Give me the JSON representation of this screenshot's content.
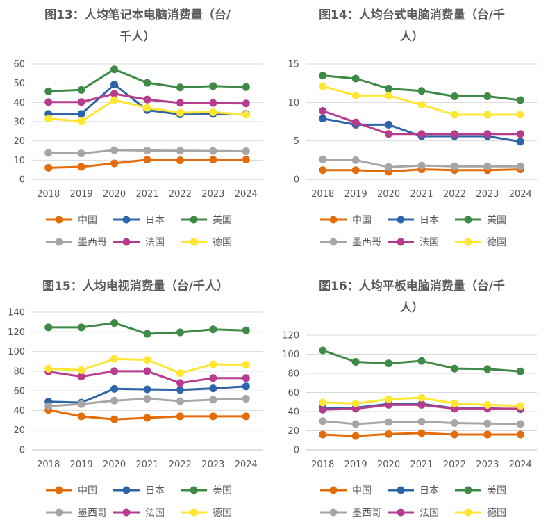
{
  "chart_data": [
    {
      "type": "line",
      "title": "图13：人均笔记本电脑消费量（台/千人）",
      "title_lines": [
        "图13：人均笔记本电脑消费量（台/",
        "千人）"
      ],
      "categories": [
        "2018",
        "2019",
        "2020",
        "2021",
        "2022",
        "2023",
        "2024"
      ],
      "ylim": [
        0,
        60
      ],
      "yticks": [
        0,
        10,
        20,
        30,
        40,
        50,
        60
      ],
      "grid": true,
      "legend_position": "bottom",
      "series": [
        {
          "name": "中国",
          "color": "#E46C0A",
          "values": [
            6,
            6.5,
            8.3,
            10.2,
            9.9,
            10.2,
            10.3
          ]
        },
        {
          "name": "日本",
          "color": "#2E64A8",
          "values": [
            34,
            34,
            49.3,
            36,
            33.8,
            34,
            34
          ]
        },
        {
          "name": "美国",
          "color": "#3F8A46",
          "values": [
            45.8,
            46.5,
            57.2,
            50.2,
            47.8,
            48.5,
            48
          ]
        },
        {
          "name": "墨西哥",
          "color": "#A6A6A6",
          "values": [
            13.8,
            13.5,
            15.2,
            15,
            14.9,
            14.8,
            14.6
          ]
        },
        {
          "name": "法国",
          "color": "#B73C8E",
          "values": [
            40.2,
            40.2,
            44.5,
            41.5,
            39.8,
            39.7,
            39.5
          ]
        },
        {
          "name": "德国",
          "color": "#FFE633",
          "values": [
            31.5,
            30.2,
            41.2,
            37.2,
            34.7,
            34.9,
            33.6
          ]
        }
      ]
    },
    {
      "type": "line",
      "title": "图14：人均台式电脑消费量（台/千人）",
      "title_lines": [
        "图14：人均台式电脑消费量（台/千",
        "人）"
      ],
      "categories": [
        "2018",
        "2019",
        "2020",
        "2021",
        "2022",
        "2023",
        "2024"
      ],
      "ylim": [
        0,
        15
      ],
      "yticks": [
        0,
        5,
        10,
        15
      ],
      "grid": true,
      "legend_position": "bottom",
      "series": [
        {
          "name": "中国",
          "color": "#E46C0A",
          "values": [
            1.2,
            1.2,
            1.0,
            1.3,
            1.2,
            1.2,
            1.3
          ]
        },
        {
          "name": "日本",
          "color": "#2E64A8",
          "values": [
            7.9,
            7.1,
            7.1,
            5.6,
            5.6,
            5.6,
            4.9
          ]
        },
        {
          "name": "美国",
          "color": "#3F8A46",
          "values": [
            13.5,
            13.1,
            11.8,
            11.5,
            10.8,
            10.8,
            10.3
          ]
        },
        {
          "name": "墨西哥",
          "color": "#A6A6A6",
          "values": [
            2.6,
            2.5,
            1.6,
            1.8,
            1.7,
            1.7,
            1.7
          ]
        },
        {
          "name": "法国",
          "color": "#B73C8E",
          "values": [
            8.9,
            7.4,
            5.9,
            5.9,
            5.9,
            5.9,
            5.9
          ]
        },
        {
          "name": "德国",
          "color": "#FFE633",
          "values": [
            12.1,
            10.9,
            10.9,
            9.7,
            8.4,
            8.4,
            8.4
          ]
        }
      ]
    },
    {
      "type": "line",
      "title": "图15：人均电视消费量（台/千人）",
      "title_lines": [
        "图15：人均电视消费量（台/千人）"
      ],
      "categories": [
        "2018",
        "2019",
        "2020",
        "2021",
        "2022",
        "2023",
        "2024"
      ],
      "ylim": [
        0,
        140
      ],
      "yticks": [
        0,
        20,
        40,
        60,
        80,
        100,
        120,
        140
      ],
      "grid": true,
      "legend_position": "bottom",
      "series": [
        {
          "name": "中国",
          "color": "#E46C0A",
          "values": [
            40.5,
            34,
            31,
            32.5,
            34,
            34,
            34
          ]
        },
        {
          "name": "日本",
          "color": "#2E64A8",
          "values": [
            49,
            48,
            62,
            61.5,
            61,
            62.5,
            64.5
          ]
        },
        {
          "name": "美国",
          "color": "#3F8A46",
          "values": [
            124.5,
            124.5,
            129,
            118,
            119.5,
            122.5,
            121.5
          ]
        },
        {
          "name": "墨西哥",
          "color": "#A6A6A6",
          "values": [
            44.5,
            46.5,
            50,
            52,
            49.5,
            51,
            52
          ]
        },
        {
          "name": "法国",
          "color": "#B73C8E",
          "values": [
            79.5,
            74.5,
            80,
            80,
            68,
            73,
            73
          ]
        },
        {
          "name": "德国",
          "color": "#FFE633",
          "values": [
            82.5,
            81,
            92.5,
            91.5,
            78,
            87,
            86.5
          ]
        }
      ]
    },
    {
      "type": "line",
      "title": "图16：人均平板电脑消费量（台/千人）",
      "title_lines": [
        "图16：人均平板电脑消费量（台/千",
        "人）"
      ],
      "categories": [
        "2018",
        "2019",
        "2020",
        "2021",
        "2022",
        "2023",
        "2024"
      ],
      "ylim": [
        0,
        120
      ],
      "yticks": [
        0,
        20,
        40,
        60,
        80,
        100,
        120
      ],
      "grid": true,
      "legend_position": "bottom",
      "series": [
        {
          "name": "中国",
          "color": "#E46C0A",
          "values": [
            16,
            14.5,
            16.5,
            17.5,
            16,
            16,
            16
          ]
        },
        {
          "name": "日本",
          "color": "#2E64A8",
          "values": [
            44,
            44,
            48,
            48,
            43.5,
            43.5,
            42.5
          ]
        },
        {
          "name": "美国",
          "color": "#3F8A46",
          "values": [
            104,
            92,
            90.5,
            93,
            85,
            84.5,
            82
          ]
        },
        {
          "name": "墨西哥",
          "color": "#A6A6A6",
          "values": [
            30,
            27,
            29,
            29.5,
            28,
            27.5,
            27
          ]
        },
        {
          "name": "法国",
          "color": "#B73C8E",
          "values": [
            42,
            43,
            47,
            47,
            43,
            43,
            43
          ]
        },
        {
          "name": "德国",
          "color": "#FFE633",
          "values": [
            49.5,
            48.5,
            53,
            54.5,
            48.5,
            47,
            46
          ]
        }
      ]
    }
  ]
}
